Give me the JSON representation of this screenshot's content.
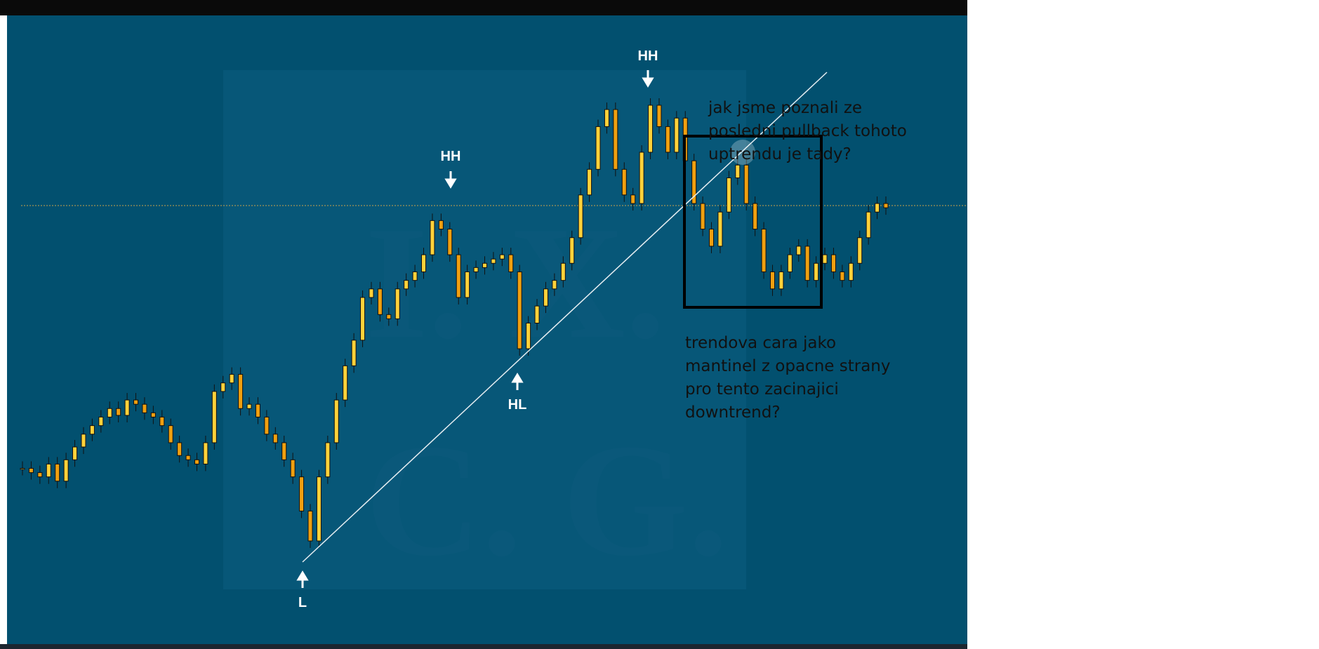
{
  "chart": {
    "closes": [
      150,
      145,
      140,
      155,
      135,
      160,
      175,
      190,
      200,
      210,
      220,
      212,
      230,
      225,
      215,
      210,
      200,
      180,
      165,
      160,
      155,
      180,
      240,
      250,
      260,
      220,
      225,
      210,
      190,
      180,
      160,
      140,
      100,
      65,
      140,
      180,
      230,
      270,
      300,
      350,
      360,
      330,
      325,
      360,
      370,
      380,
      400,
      440,
      430,
      400,
      350,
      380,
      385,
      390,
      395,
      400,
      380,
      290,
      320,
      340,
      360,
      370,
      390,
      420,
      470,
      500,
      550,
      570,
      500,
      470,
      460,
      520,
      575,
      550,
      520,
      560,
      510,
      460,
      430,
      410,
      450,
      490,
      505,
      460,
      430,
      380,
      360,
      380,
      400,
      410,
      370,
      390,
      400,
      380,
      370,
      390,
      420,
      450,
      460,
      455
    ]
  },
  "labels": {
    "hh1": "HH",
    "hh2": "HH",
    "hl": "HL",
    "l": "L"
  },
  "notes": {
    "question1": [
      "jak jsme poznali ze",
      "posledni pullback tohoto",
      "uptrendu je tady?"
    ],
    "question2": [
      "trendova cara jako",
      "mantinel z opacne strany",
      "pro tento zacinajici",
      "downtrend?"
    ]
  },
  "watermark": [
    "I. X.",
    "C. G."
  ]
}
